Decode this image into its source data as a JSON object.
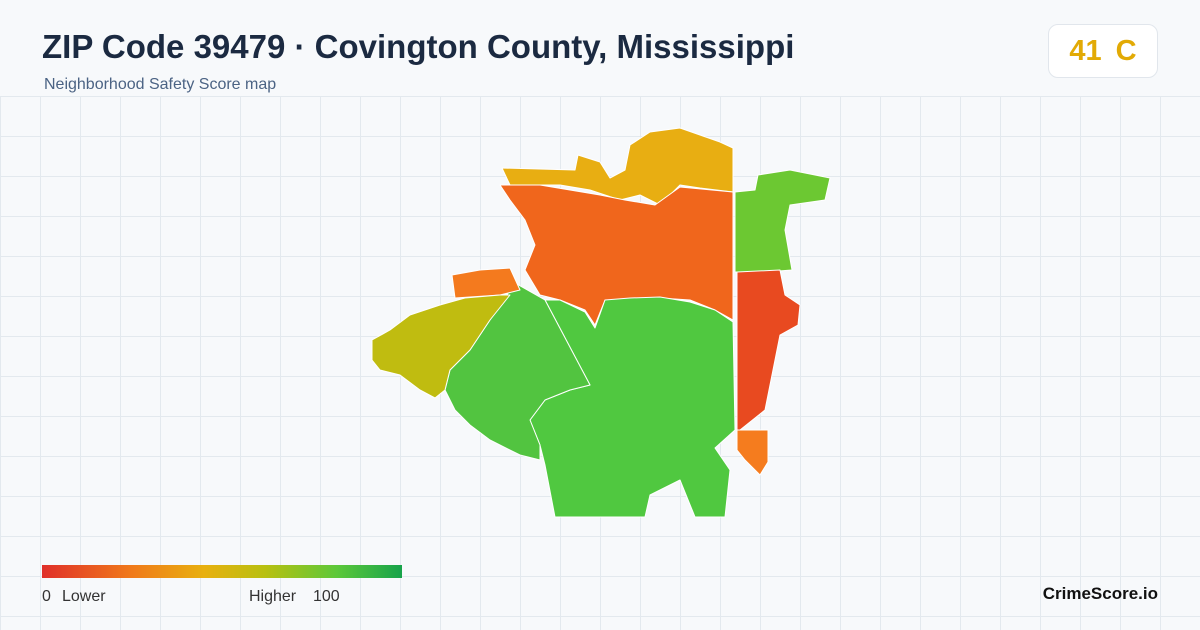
{
  "header": {
    "title": "ZIP Code 39479 · Covington County, Mississippi",
    "subtitle": "Neighborhood Safety Score map"
  },
  "score": {
    "value": 41,
    "grade": "C"
  },
  "legend": {
    "min": 0,
    "min_label": "Lower",
    "max_label": "Higher",
    "max": 100
  },
  "brand": "CrimeScore.io"
}
